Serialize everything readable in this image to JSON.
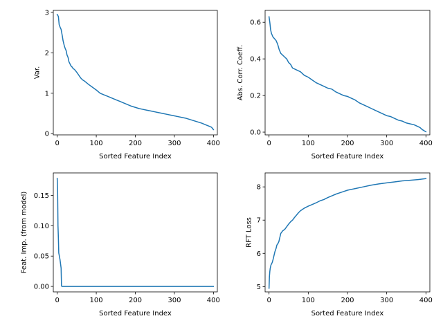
{
  "chart_data": [
    {
      "type": "line",
      "xlabel": "Sorted Feature Index",
      "ylabel": "Var.",
      "xlim": [
        -10,
        410
      ],
      "ylim": [
        -0.03,
        3.05
      ],
      "xticks": [
        0,
        100,
        200,
        300,
        400
      ],
      "yticks": [
        0,
        1,
        2,
        3
      ],
      "color": "#1f77b4",
      "series": [
        {
          "x": [
            0,
            3,
            5,
            8,
            10,
            13,
            15,
            18,
            20,
            23,
            25,
            28,
            30,
            33,
            35,
            38,
            40,
            45,
            50,
            55,
            60,
            65,
            70,
            75,
            80,
            90,
            100,
            110,
            120,
            130,
            140,
            150,
            160,
            170,
            180,
            190,
            200,
            210,
            220,
            230,
            240,
            250,
            260,
            270,
            280,
            290,
            300,
            310,
            320,
            330,
            340,
            350,
            360,
            370,
            380,
            385,
            390,
            395,
            400
          ],
          "y": [
            2.95,
            2.9,
            2.7,
            2.62,
            2.58,
            2.42,
            2.3,
            2.18,
            2.12,
            2.05,
            1.95,
            1.88,
            1.78,
            1.72,
            1.68,
            1.65,
            1.62,
            1.58,
            1.52,
            1.45,
            1.38,
            1.33,
            1.3,
            1.26,
            1.22,
            1.15,
            1.08,
            1.0,
            0.96,
            0.92,
            0.88,
            0.84,
            0.8,
            0.76,
            0.72,
            0.68,
            0.65,
            0.62,
            0.6,
            0.58,
            0.56,
            0.54,
            0.52,
            0.5,
            0.48,
            0.46,
            0.44,
            0.42,
            0.4,
            0.38,
            0.35,
            0.32,
            0.29,
            0.26,
            0.22,
            0.2,
            0.18,
            0.16,
            0.1
          ]
        }
      ]
    },
    {
      "type": "line",
      "xlabel": "Sorted Feature Index",
      "ylabel": "Abs. Corr. Coeff.",
      "xlim": [
        -10,
        410
      ],
      "ylim": [
        -0.015,
        0.665
      ],
      "xticks": [
        0,
        100,
        200,
        300,
        400
      ],
      "yticks": [
        0.0,
        0.2,
        0.4,
        0.6
      ],
      "ytick_labels": [
        "0.0",
        "0.2",
        "0.4",
        "0.6"
      ],
      "color": "#1f77b4",
      "series": [
        {
          "x": [
            0,
            2,
            4,
            6,
            8,
            10,
            14,
            18,
            22,
            26,
            30,
            35,
            40,
            45,
            50,
            55,
            60,
            65,
            70,
            80,
            90,
            100,
            110,
            120,
            130,
            140,
            150,
            160,
            170,
            180,
            190,
            200,
            210,
            220,
            230,
            240,
            250,
            260,
            270,
            280,
            290,
            300,
            310,
            320,
            330,
            340,
            350,
            360,
            370,
            380,
            385,
            390,
            395,
            400
          ],
          "y": [
            0.63,
            0.6,
            0.56,
            0.54,
            0.53,
            0.52,
            0.51,
            0.5,
            0.48,
            0.45,
            0.43,
            0.42,
            0.41,
            0.4,
            0.38,
            0.37,
            0.35,
            0.345,
            0.34,
            0.33,
            0.31,
            0.3,
            0.285,
            0.27,
            0.26,
            0.25,
            0.24,
            0.235,
            0.22,
            0.21,
            0.2,
            0.195,
            0.185,
            0.175,
            0.16,
            0.15,
            0.14,
            0.13,
            0.12,
            0.11,
            0.1,
            0.09,
            0.085,
            0.075,
            0.065,
            0.06,
            0.05,
            0.045,
            0.04,
            0.03,
            0.025,
            0.015,
            0.008,
            0.002
          ]
        }
      ]
    },
    {
      "type": "line",
      "xlabel": "Sorted Feature Index",
      "ylabel": "Feat. Imp. (from model)",
      "xlim": [
        -10,
        410
      ],
      "ylim": [
        -0.009,
        0.187
      ],
      "xticks": [
        0,
        100,
        200,
        300,
        400
      ],
      "yticks": [
        0.0,
        0.05,
        0.1,
        0.15
      ],
      "ytick_labels": [
        "0.00",
        "0.05",
        "0.10",
        "0.15"
      ],
      "color": "#1f77b4",
      "series": [
        {
          "x": [
            0,
            1,
            2,
            3,
            4,
            5,
            6,
            7,
            8,
            9,
            10,
            11,
            12,
            15,
            20,
            50,
            100,
            200,
            300,
            400
          ],
          "y": [
            0.178,
            0.16,
            0.1,
            0.08,
            0.055,
            0.052,
            0.048,
            0.045,
            0.04,
            0.035,
            0.03,
            0.001,
            0.0,
            0.0,
            0.0,
            0.0,
            0.0,
            0.0,
            0.0,
            0.0
          ]
        }
      ]
    },
    {
      "type": "line",
      "xlabel": "Sorted Feature Index",
      "ylabel": "RFT Loss",
      "xlim": [
        -10,
        410
      ],
      "ylim": [
        4.84,
        8.42
      ],
      "xticks": [
        0,
        100,
        200,
        300,
        400
      ],
      "yticks": [
        5,
        6,
        7,
        8
      ],
      "color": "#1f77b4",
      "series": [
        {
          "x": [
            0,
            1,
            2,
            3,
            5,
            8,
            10,
            13,
            15,
            18,
            20,
            23,
            25,
            28,
            30,
            35,
            40,
            45,
            50,
            55,
            60,
            65,
            70,
            75,
            80,
            90,
            100,
            110,
            120,
            130,
            140,
            150,
            160,
            170,
            180,
            190,
            200,
            220,
            240,
            260,
            280,
            300,
            320,
            340,
            360,
            380,
            400
          ],
          "y": [
            4.95,
            5.3,
            5.45,
            5.55,
            5.65,
            5.72,
            5.8,
            5.95,
            6.05,
            6.15,
            6.25,
            6.3,
            6.35,
            6.5,
            6.6,
            6.68,
            6.72,
            6.8,
            6.88,
            6.95,
            7.0,
            7.08,
            7.15,
            7.22,
            7.28,
            7.36,
            7.42,
            7.47,
            7.52,
            7.58,
            7.62,
            7.68,
            7.73,
            7.78,
            7.82,
            7.86,
            7.9,
            7.95,
            8.0,
            8.05,
            8.09,
            8.12,
            8.15,
            8.18,
            8.2,
            8.22,
            8.25
          ]
        }
      ]
    }
  ]
}
